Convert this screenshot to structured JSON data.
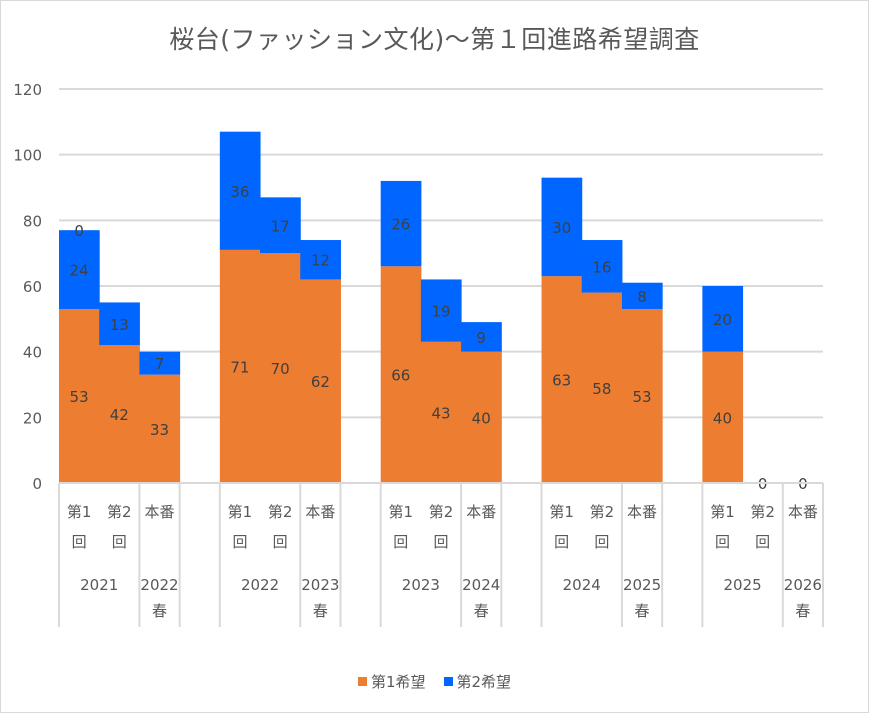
{
  "chart_data": {
    "type": "bar",
    "stacked": true,
    "title": "桜台(ファッション文化)〜第１回進路希望調査",
    "xlabel": "",
    "ylabel": "",
    "ylim": [
      0,
      120
    ],
    "yticks": [
      "0",
      "20",
      "40",
      "60",
      "80",
      "100",
      "120"
    ],
    "grid": true,
    "legend_position": "bottom",
    "groups": [
      {
        "label": "2021",
        "span": 2
      },
      {
        "label": "2022春",
        "lines": [
          "2022",
          "春"
        ],
        "span": 1
      },
      {
        "label": "",
        "span": 1
      },
      {
        "label": "2022",
        "span": 2
      },
      {
        "label": "2023春",
        "lines": [
          "2023",
          "春"
        ],
        "span": 1
      },
      {
        "label": "",
        "span": 1
      },
      {
        "label": "2023",
        "span": 2
      },
      {
        "label": "2024春",
        "lines": [
          "2024",
          "春"
        ],
        "span": 1
      },
      {
        "label": "",
        "span": 1
      },
      {
        "label": "2024",
        "span": 2
      },
      {
        "label": "2025春",
        "lines": [
          "2025",
          "春"
        ],
        "span": 1
      },
      {
        "label": "",
        "span": 1
      },
      {
        "label": "2025",
        "span": 2
      },
      {
        "label": "2026春",
        "lines": [
          "2026",
          "春"
        ],
        "span": 1
      }
    ],
    "categories": [
      {
        "label": "第1回",
        "lines": [
          "第1",
          "回"
        ]
      },
      {
        "label": "第2回",
        "lines": [
          "第2",
          "回"
        ]
      },
      {
        "label": "本番",
        "lines": [
          "本番"
        ]
      },
      {
        "label": "",
        "lines": []
      },
      {
        "label": "第1回",
        "lines": [
          "第1",
          "回"
        ]
      },
      {
        "label": "第2回",
        "lines": [
          "第2",
          "回"
        ]
      },
      {
        "label": "本番",
        "lines": [
          "本番"
        ]
      },
      {
        "label": "",
        "lines": []
      },
      {
        "label": "第1回",
        "lines": [
          "第1",
          "回"
        ]
      },
      {
        "label": "第2回",
        "lines": [
          "第2",
          "回"
        ]
      },
      {
        "label": "本番",
        "lines": [
          "本番"
        ]
      },
      {
        "label": "",
        "lines": []
      },
      {
        "label": "第1回",
        "lines": [
          "第1",
          "回"
        ]
      },
      {
        "label": "第2回",
        "lines": [
          "第2",
          "回"
        ]
      },
      {
        "label": "本番",
        "lines": [
          "本番"
        ]
      },
      {
        "label": "",
        "lines": []
      },
      {
        "label": "第1回",
        "lines": [
          "第1",
          "回"
        ]
      },
      {
        "label": "第2回",
        "lines": [
          "第2",
          "回"
        ]
      },
      {
        "label": "本番",
        "lines": [
          "本番"
        ]
      }
    ],
    "series": [
      {
        "name": "第1希望",
        "color": "#ED7D31",
        "values": [
          53,
          42,
          33,
          null,
          71,
          70,
          62,
          null,
          66,
          43,
          40,
          null,
          63,
          58,
          53,
          null,
          40,
          null,
          null
        ]
      },
      {
        "name": "第2希望",
        "color": "#0066FF",
        "values": [
          24,
          13,
          7,
          null,
          36,
          17,
          12,
          null,
          26,
          19,
          9,
          null,
          30,
          16,
          8,
          null,
          20,
          null,
          null
        ]
      }
    ],
    "extra_labels": [
      {
        "category_index": 0,
        "text": "0"
      },
      {
        "category_index": 17,
        "text": "0"
      },
      {
        "category_index": 18,
        "text": "0"
      }
    ]
  },
  "legend": {
    "items": [
      {
        "label": "第1希望",
        "color": "#ED7D31"
      },
      {
        "label": "第2希望",
        "color": "#0066FF"
      }
    ]
  }
}
